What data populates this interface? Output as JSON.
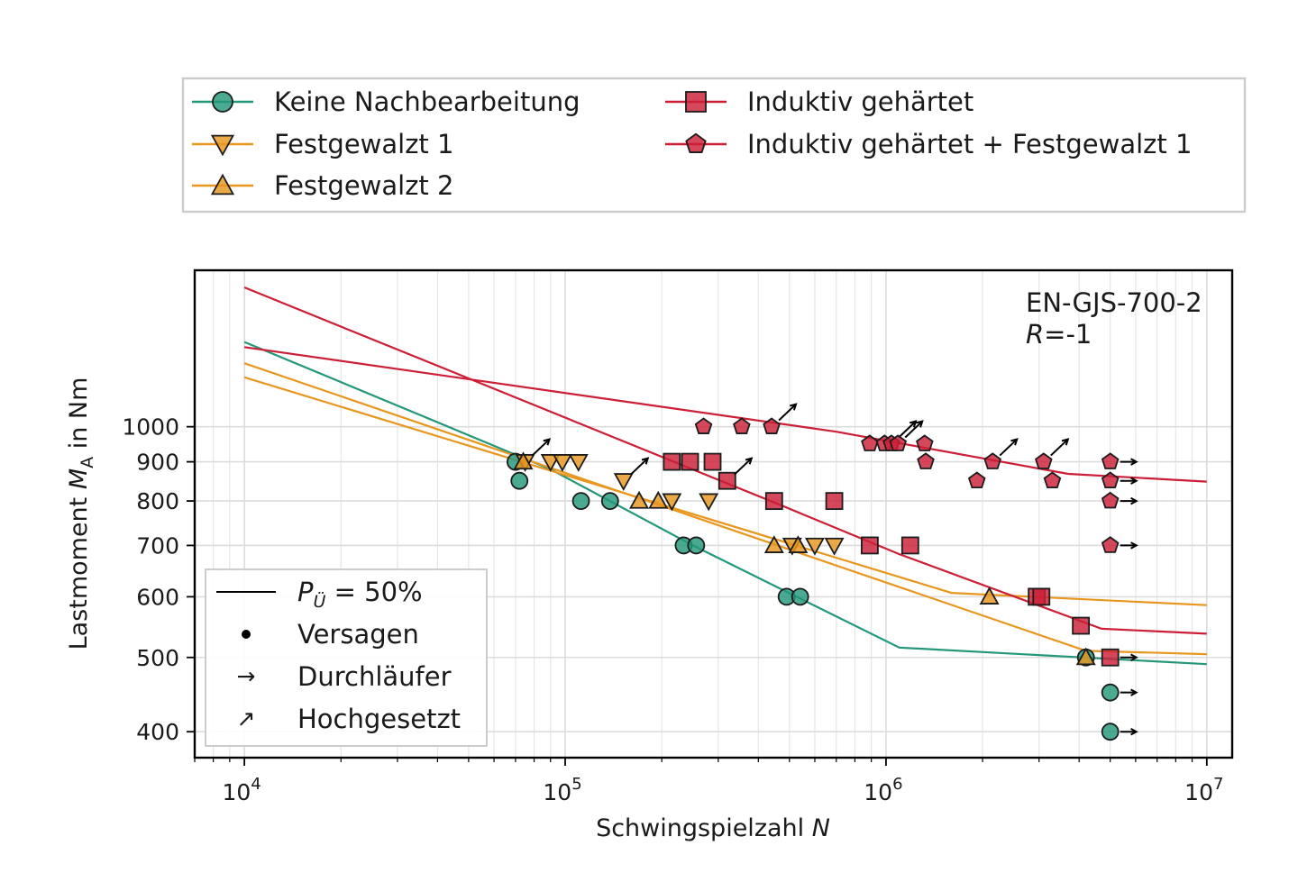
{
  "chart_data": {
    "type": "scatter",
    "xlabel_main": "Schwingspielzahl ",
    "xlabel_var": "N",
    "ylabel_main": "Lastmoment ",
    "ylabel_var": "M",
    "ylabel_sub": "A",
    "ylabel_unit": " in Nm",
    "xscale": "log",
    "yscale": "log",
    "xlim": [
      7000,
      12000000
    ],
    "ylim": [
      370,
      1600
    ],
    "x_ticks": [
      {
        "value": 10000,
        "base": "10",
        "exp": "4"
      },
      {
        "value": 100000,
        "base": "10",
        "exp": "5"
      },
      {
        "value": 1000000,
        "base": "10",
        "exp": "6"
      },
      {
        "value": 10000000,
        "base": "10",
        "exp": "7"
      }
    ],
    "y_ticks": [
      {
        "value": 400,
        "label": "400"
      },
      {
        "value": 500,
        "label": "500"
      },
      {
        "value": 600,
        "label": "600"
      },
      {
        "value": 700,
        "label": "700"
      },
      {
        "value": 800,
        "label": "800"
      },
      {
        "value": 900,
        "label": "900"
      },
      {
        "value": 1000,
        "label": "1000"
      }
    ],
    "grid": true,
    "annotation": {
      "line1": "EN-GJS-700-2",
      "line2_var": "R",
      "line2_rest": "=-1"
    },
    "series": [
      {
        "name": "Keine Nachbearbeitung",
        "color": "#23977a",
        "marker": "circle",
        "curve": [
          [
            10000,
            1290
          ],
          [
            90000,
            880
          ],
          [
            250000,
            700
          ],
          [
            1100000,
            515
          ],
          [
            10000000,
            490
          ]
        ],
        "points": [
          {
            "x": 70000,
            "y": 900,
            "type": "failure"
          },
          {
            "x": 72000,
            "y": 850,
            "type": "failure"
          },
          {
            "x": 112000,
            "y": 800,
            "type": "failure"
          },
          {
            "x": 138000,
            "y": 800,
            "type": "failure"
          },
          {
            "x": 234000,
            "y": 700,
            "type": "failure"
          },
          {
            "x": 256000,
            "y": 700,
            "type": "failure"
          },
          {
            "x": 490000,
            "y": 600,
            "type": "failure"
          },
          {
            "x": 540000,
            "y": 600,
            "type": "failure"
          },
          {
            "x": 4200000,
            "y": 500,
            "type": "failure"
          },
          {
            "x": 5000000,
            "y": 450,
            "type": "runout"
          },
          {
            "x": 5000000,
            "y": 400,
            "type": "runout"
          }
        ]
      },
      {
        "name": "Festgewalzt 1",
        "color": "#e8961e",
        "marker": "triangle-down",
        "curve": [
          [
            10000,
            1210
          ],
          [
            4200000,
            510
          ],
          [
            10000000,
            505
          ]
        ],
        "points": [
          {
            "x": 75000,
            "y": 900,
            "type": "raised"
          },
          {
            "x": 90000,
            "y": 900,
            "type": "failure"
          },
          {
            "x": 98000,
            "y": 900,
            "type": "failure"
          },
          {
            "x": 110000,
            "y": 900,
            "type": "failure"
          },
          {
            "x": 152000,
            "y": 850,
            "type": "raised"
          },
          {
            "x": 215000,
            "y": 800,
            "type": "failure"
          },
          {
            "x": 280000,
            "y": 800,
            "type": "failure"
          },
          {
            "x": 510000,
            "y": 700,
            "type": "failure"
          },
          {
            "x": 600000,
            "y": 700,
            "type": "failure"
          },
          {
            "x": 690000,
            "y": 700,
            "type": "failure"
          }
        ]
      },
      {
        "name": "Festgewalzt 2",
        "color": "#e8961e",
        "marker": "triangle-up",
        "curve": [
          [
            10000,
            1160
          ],
          [
            1600000,
            607
          ],
          [
            10000000,
            585
          ]
        ],
        "points": [
          {
            "x": 74000,
            "y": 900,
            "type": "failure"
          },
          {
            "x": 170000,
            "y": 800,
            "type": "failure"
          },
          {
            "x": 195000,
            "y": 800,
            "type": "failure"
          },
          {
            "x": 448000,
            "y": 700,
            "type": "failure"
          },
          {
            "x": 532000,
            "y": 700,
            "type": "failure"
          },
          {
            "x": 2100000,
            "y": 600,
            "type": "failure"
          },
          {
            "x": 4200000,
            "y": 500,
            "type": "failure"
          }
        ]
      },
      {
        "name": "Induktiv gehärtet",
        "color": "#cc1f36",
        "marker": "square",
        "curve": [
          [
            10000,
            1520
          ],
          [
            470000,
            790
          ],
          [
            1100000,
            682
          ],
          [
            4700000,
            545
          ],
          [
            10000000,
            537
          ]
        ],
        "points": [
          {
            "x": 215000,
            "y": 900,
            "type": "failure"
          },
          {
            "x": 245000,
            "y": 900,
            "type": "failure"
          },
          {
            "x": 288000,
            "y": 900,
            "type": "failure"
          },
          {
            "x": 320000,
            "y": 850,
            "type": "raised"
          },
          {
            "x": 448000,
            "y": 800,
            "type": "failure"
          },
          {
            "x": 690000,
            "y": 800,
            "type": "failure"
          },
          {
            "x": 890000,
            "y": 700,
            "type": "failure"
          },
          {
            "x": 1190000,
            "y": 700,
            "type": "failure"
          },
          {
            "x": 2950000,
            "y": 600,
            "type": "failure"
          },
          {
            "x": 3050000,
            "y": 600,
            "type": "failure"
          },
          {
            "x": 4050000,
            "y": 550,
            "type": "failure"
          },
          {
            "x": 5000000,
            "y": 500,
            "type": "runout"
          }
        ]
      },
      {
        "name": "Induktiv gehärtet + Festgewalzt 1",
        "color": "#cc1f36",
        "marker": "pentagon",
        "curve": [
          [
            10000,
            1270
          ],
          [
            700000,
            985
          ],
          [
            3700000,
            868
          ],
          [
            10000000,
            848
          ]
        ],
        "points": [
          {
            "x": 270000,
            "y": 1000,
            "type": "failure"
          },
          {
            "x": 355000,
            "y": 1000,
            "type": "failure"
          },
          {
            "x": 440000,
            "y": 1000,
            "type": "raised"
          },
          {
            "x": 890000,
            "y": 950,
            "type": "failure"
          },
          {
            "x": 990000,
            "y": 950,
            "type": "failure"
          },
          {
            "x": 1040000,
            "y": 950,
            "type": "raised"
          },
          {
            "x": 1090000,
            "y": 950,
            "type": "raised"
          },
          {
            "x": 1320000,
            "y": 950,
            "type": "failure"
          },
          {
            "x": 1330000,
            "y": 900,
            "type": "failure"
          },
          {
            "x": 1920000,
            "y": 850,
            "type": "failure"
          },
          {
            "x": 2150000,
            "y": 900,
            "type": "raised"
          },
          {
            "x": 3100000,
            "y": 900,
            "type": "raised"
          },
          {
            "x": 3300000,
            "y": 850,
            "type": "failure"
          },
          {
            "x": 5000000,
            "y": 900,
            "type": "runout"
          },
          {
            "x": 5000000,
            "y": 850,
            "type": "runout"
          },
          {
            "x": 5000000,
            "y": 800,
            "type": "runout"
          },
          {
            "x": 5000000,
            "y": 700,
            "type": "runout"
          }
        ]
      }
    ],
    "legend_symbols": {
      "curve_main": "P",
      "curve_sub": "Ü",
      "curve_rest": " = 50%",
      "failure": "Versagen",
      "runout": "Durchläufer",
      "raised": "Hochgesetzt",
      "runout_glyph": "→",
      "raised_glyph": "↗"
    }
  }
}
